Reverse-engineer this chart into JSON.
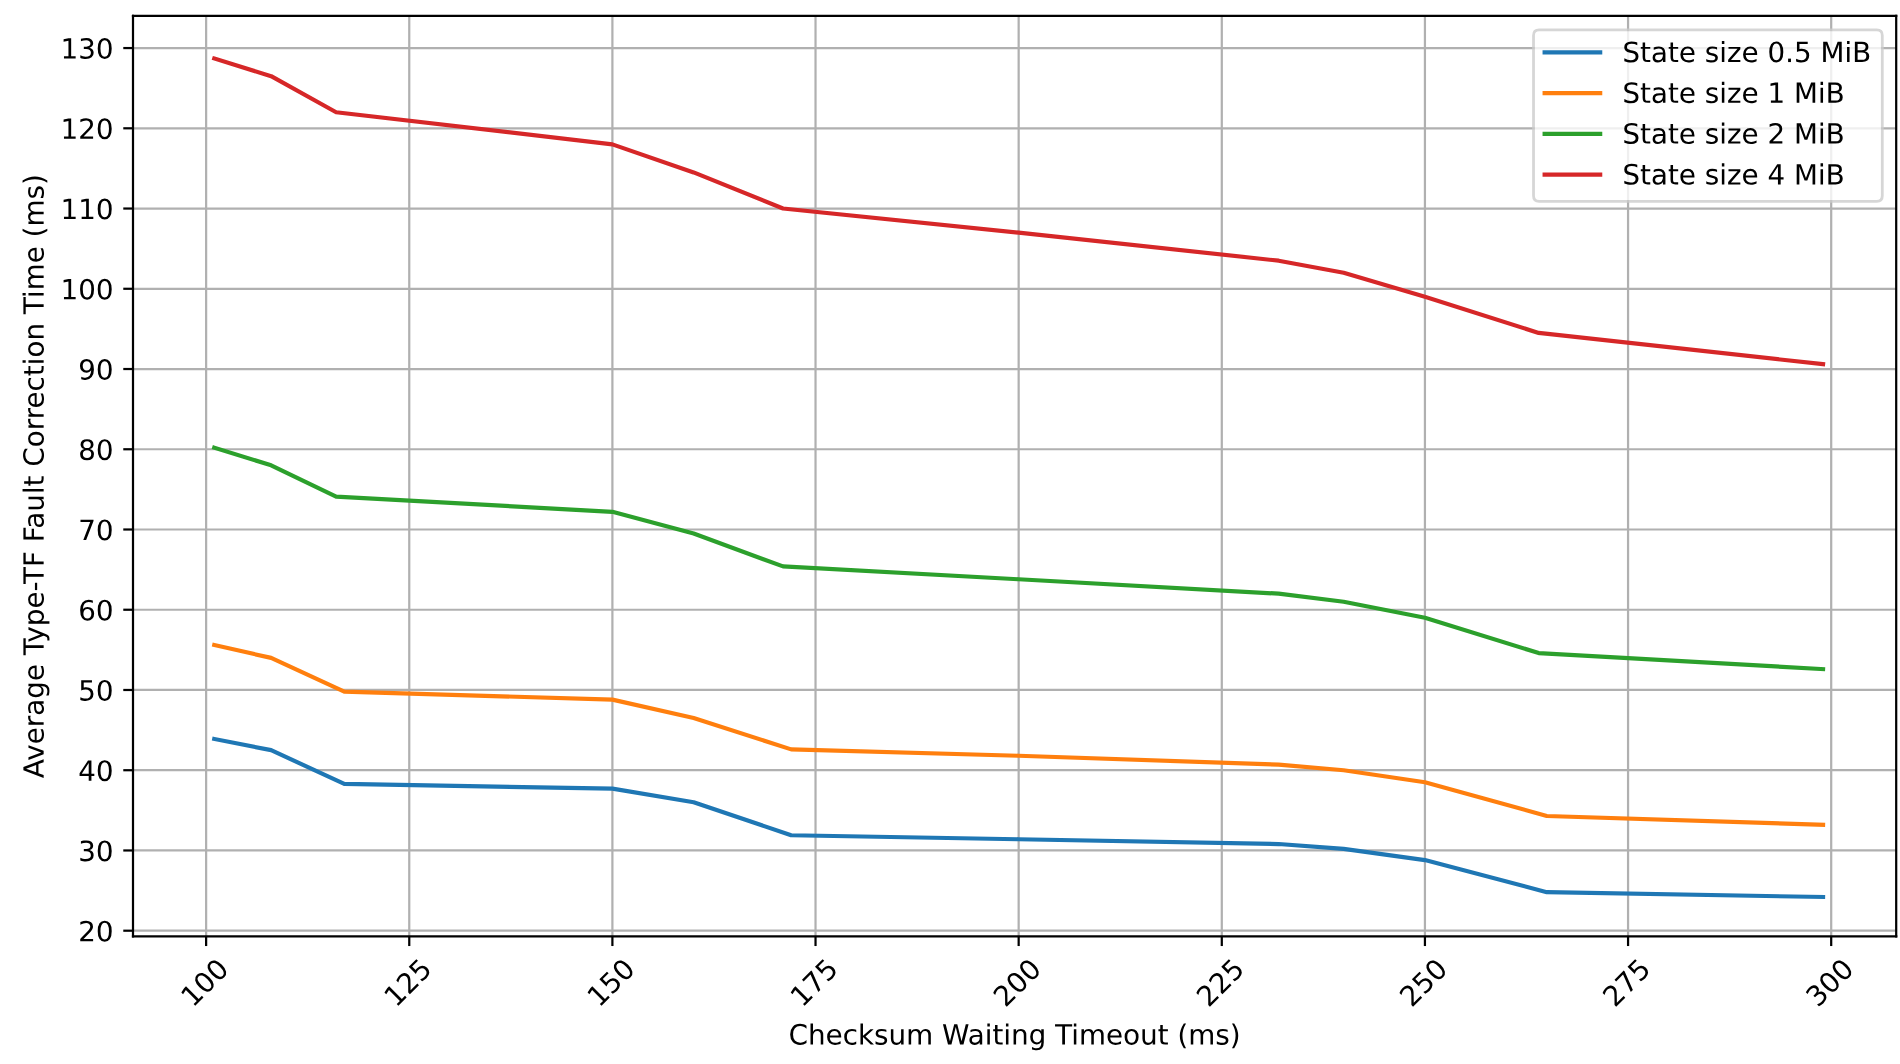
{
  "chart_data": {
    "type": "line",
    "xlabel": "Checksum Waiting Timeout (ms)",
    "ylabel": "Average Type-TF Fault Correction Time (ms)",
    "xlim": [
      91,
      308
    ],
    "ylim": [
      19.3,
      134
    ],
    "xticks": [
      100,
      125,
      150,
      175,
      200,
      225,
      250,
      275,
      300
    ],
    "yticks": [
      20,
      30,
      40,
      50,
      60,
      70,
      80,
      90,
      100,
      110,
      120,
      130
    ],
    "grid": true,
    "legend": "top right",
    "marker": "none",
    "line_style": "solid",
    "series": [
      {
        "name": "State size 0.5 MiB",
        "color": "#1f77b4",
        "x": [
          101,
          108,
          117,
          150,
          160,
          172,
          200,
          232,
          240,
          250,
          265,
          299
        ],
        "values": [
          43.9,
          42.5,
          38.3,
          37.7,
          36,
          31.9,
          31.4,
          30.8,
          30.2,
          28.8,
          24.8,
          24.2
        ]
      },
      {
        "name": "State size 1 MiB",
        "color": "#ff7f0e",
        "x": [
          101,
          108,
          117,
          150,
          160,
          172,
          200,
          232,
          240,
          250,
          265,
          299
        ],
        "values": [
          55.6,
          54,
          49.8,
          48.8,
          46.5,
          42.6,
          41.8,
          40.7,
          40,
          38.5,
          34.3,
          33.2
        ]
      },
      {
        "name": "State size 2 MiB",
        "color": "#2ca02c",
        "x": [
          101,
          108,
          116,
          150,
          160,
          171,
          200,
          232,
          240,
          250,
          264,
          299
        ],
        "values": [
          80.2,
          78,
          74.1,
          72.2,
          69.5,
          65.4,
          63.8,
          62,
          61,
          59,
          54.6,
          52.6
        ]
      },
      {
        "name": "State size 4 MiB",
        "color": "#d62728",
        "x": [
          101,
          108,
          116,
          150,
          160,
          171,
          200,
          232,
          240,
          250,
          264,
          299
        ],
        "values": [
          128.7,
          126.5,
          122,
          118,
          114.5,
          110,
          107,
          103.5,
          102,
          99,
          94.5,
          90.6
        ]
      }
    ]
  }
}
